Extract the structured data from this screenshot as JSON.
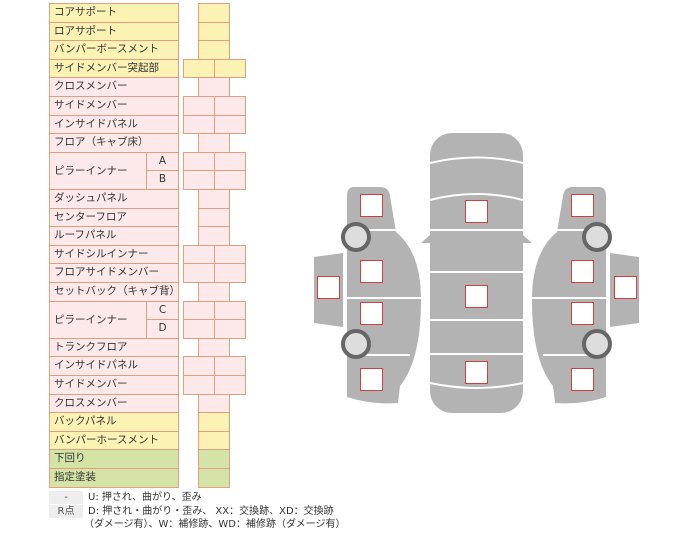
{
  "rows": [
    {
      "label": "コアサポート",
      "color": "y",
      "cells": 1
    },
    {
      "label": "ロアサポート",
      "color": "y",
      "cells": 1
    },
    {
      "label": "バンパーボースメント",
      "color": "y",
      "cells": 1
    },
    {
      "label": "サイドメンバー突起部",
      "color": "y",
      "cells": 2
    },
    {
      "label": "クロスメンバー",
      "color": "p",
      "cells": 1
    },
    {
      "label": "サイドメンバー",
      "color": "p",
      "cells": 2
    },
    {
      "label": "インサイドパネル",
      "color": "p",
      "cells": 2
    },
    {
      "label": "フロア（キャブ床）",
      "color": "p",
      "cells": 1
    },
    {
      "label": "ピラーインナー",
      "letters": [
        "A",
        "B"
      ],
      "color": "p",
      "cells": 2
    },
    {
      "label": "ダッシュパネル",
      "color": "p",
      "cells": 1
    },
    {
      "label": "センターフロア",
      "color": "p",
      "cells": 1
    },
    {
      "label": "ルーフパネル",
      "color": "p",
      "cells": 1
    },
    {
      "label": "サイドシルインナー",
      "color": "p",
      "cells": 2
    },
    {
      "label": "フロアサイドメンバー",
      "color": "p",
      "cells": 2
    },
    {
      "label": "セットバック（キャブ背）",
      "color": "p",
      "cells": 1
    },
    {
      "label": "ピラーインナー",
      "letters": [
        "C",
        "D"
      ],
      "color": "p",
      "cells": 2
    },
    {
      "label": "トランクフロア",
      "color": "p",
      "cells": 1
    },
    {
      "label": "インサイドパネル",
      "color": "p",
      "cells": 2
    },
    {
      "label": "サイドメンバー",
      "color": "p",
      "cells": 2
    },
    {
      "label": "クロスメンバー",
      "color": "p",
      "cells": 1
    },
    {
      "label": "バックパネル",
      "color": "y",
      "cells": 1
    },
    {
      "label": "バンパーホースメント",
      "color": "y",
      "cells": 1
    },
    {
      "label": "下回り",
      "color": "g",
      "cells": 1
    },
    {
      "label": "指定塗装",
      "color": "g",
      "cells": 1
    }
  ],
  "legend": {
    "key1": "-",
    "text1": "U: 押され、曲がり、歪み",
    "key2": "R点",
    "text2": "D: 押され・曲がり・歪み、 XX：交換跡、XD：交換跡",
    "text3": "（ダメージ有）、W：補修跡、WD：補修跡（ダメージ有）"
  },
  "colors": {
    "yellow": "#fcf2b4",
    "pink": "#fde9ea",
    "green": "#d3e4a6",
    "border": "#e0a080",
    "body": "#b3b3b3",
    "marker": "#d04040"
  }
}
